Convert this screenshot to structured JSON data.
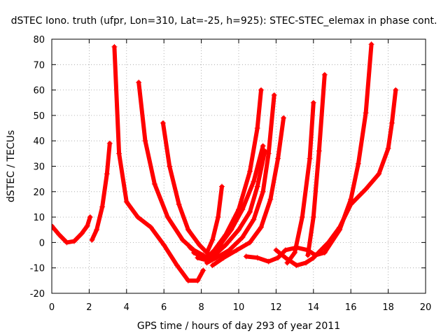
{
  "chart_data": {
    "type": "scatter",
    "title": "dSTEC Iono. truth (ufpr, Lon=310, Lat=-25, h=925): STEC-STEC_elemax in phase cont.",
    "xlabel": "GPS time / hours of day 293 of year 2011",
    "ylabel": "dSTEC  / TECUs",
    "xlim": [
      0,
      20
    ],
    "ylim": [
      -20,
      80
    ],
    "xticks": [
      "0",
      "2",
      "4",
      "6",
      "8",
      "10",
      "12",
      "14",
      "16",
      "18",
      "20"
    ],
    "yticks": [
      "-20",
      "-10",
      "0",
      "10",
      "20",
      "30",
      "40",
      "50",
      "60",
      "70",
      "80"
    ],
    "grid": true,
    "marker": "+",
    "color": "#ff0000",
    "series": [
      {
        "x": [
          0,
          0.4,
          0.8,
          1.2,
          1.6,
          1.9,
          2.05
        ],
        "y": [
          6.5,
          3,
          0,
          0.5,
          3.5,
          6.5,
          10
        ]
      },
      {
        "x": [
          2.15,
          2.4,
          2.7,
          2.95,
          3.1
        ],
        "y": [
          1,
          5,
          14,
          27,
          39
        ]
      },
      {
        "x": [
          3.35,
          3.6,
          4.0,
          4.6,
          5.3,
          6.0,
          6.7,
          7.3,
          7.8,
          8.1
        ],
        "y": [
          77,
          35,
          16,
          10,
          6,
          -1,
          -9,
          -15,
          -15,
          -11
        ]
      },
      {
        "x": [
          4.65,
          5.0,
          5.5,
          6.2,
          7.0,
          7.6,
          8.1,
          8.3
        ],
        "y": [
          63,
          40,
          23,
          10,
          1,
          -3,
          -5,
          -6
        ]
      },
      {
        "x": [
          5.95,
          6.3,
          6.8,
          7.3,
          7.9,
          8.3,
          8.6,
          8.9,
          9.1
        ],
        "y": [
          47,
          30,
          15,
          5,
          -1,
          -4,
          1,
          10,
          22
        ]
      },
      {
        "x": [
          7.4,
          7.9,
          8.3,
          8.7,
          9.3,
          10.0,
          10.6,
          11.0,
          11.2
        ],
        "y": [
          -2,
          -5,
          -6,
          -3,
          3,
          13,
          28,
          45,
          60
        ]
      },
      {
        "x": [
          7.6,
          8.1,
          8.5,
          9.0,
          9.6,
          10.2,
          10.8,
          11.3
        ],
        "y": [
          -4,
          -6,
          -5,
          -1,
          5,
          13,
          24,
          38
        ]
      },
      {
        "x": [
          7.8,
          8.3,
          8.7,
          9.3,
          10.0,
          10.6,
          11.0,
          11.4
        ],
        "y": [
          -6,
          -7,
          -5,
          -1,
          5,
          12,
          22,
          36
        ]
      },
      {
        "x": [
          8.3,
          8.8,
          9.5,
          10.2,
          10.8,
          11.3,
          11.6,
          11.9
        ],
        "y": [
          -8,
          -6,
          -3,
          2,
          9,
          20,
          35,
          58
        ]
      },
      {
        "x": [
          8.6,
          9.2,
          9.9,
          10.6,
          11.2,
          11.7,
          12.1,
          12.4
        ],
        "y": [
          -9,
          -6,
          -3,
          0,
          6,
          17,
          33,
          49
        ]
      },
      {
        "x": [
          10.4,
          11.0,
          11.6,
          12.1,
          12.5,
          13.1,
          13.7,
          14.1,
          14.6,
          15.4,
          16.0,
          16.4,
          16.8,
          17.1
        ],
        "y": [
          -5.5,
          -6,
          -7.5,
          -6,
          -3,
          -2,
          -3,
          -5,
          -4,
          5,
          17,
          31,
          51,
          78
        ]
      },
      {
        "x": [
          12.0,
          12.5,
          13.1,
          13.6,
          14.0,
          14.4,
          14.8,
          15.4,
          16.0,
          16.8,
          17.5,
          18.0,
          18.2,
          18.4
        ],
        "y": [
          -3,
          -6,
          -9,
          -8,
          -6,
          -3,
          0,
          6,
          15,
          21,
          27,
          37,
          47,
          60
        ]
      },
      {
        "x": [
          12.6,
          13.0,
          13.4,
          13.8,
          14.0
        ],
        "y": [
          -8,
          -4,
          10,
          33,
          55
        ]
      },
      {
        "x": [
          13.7,
          14.0,
          14.3,
          14.6
        ],
        "y": [
          -5,
          10,
          36,
          66
        ]
      }
    ]
  }
}
